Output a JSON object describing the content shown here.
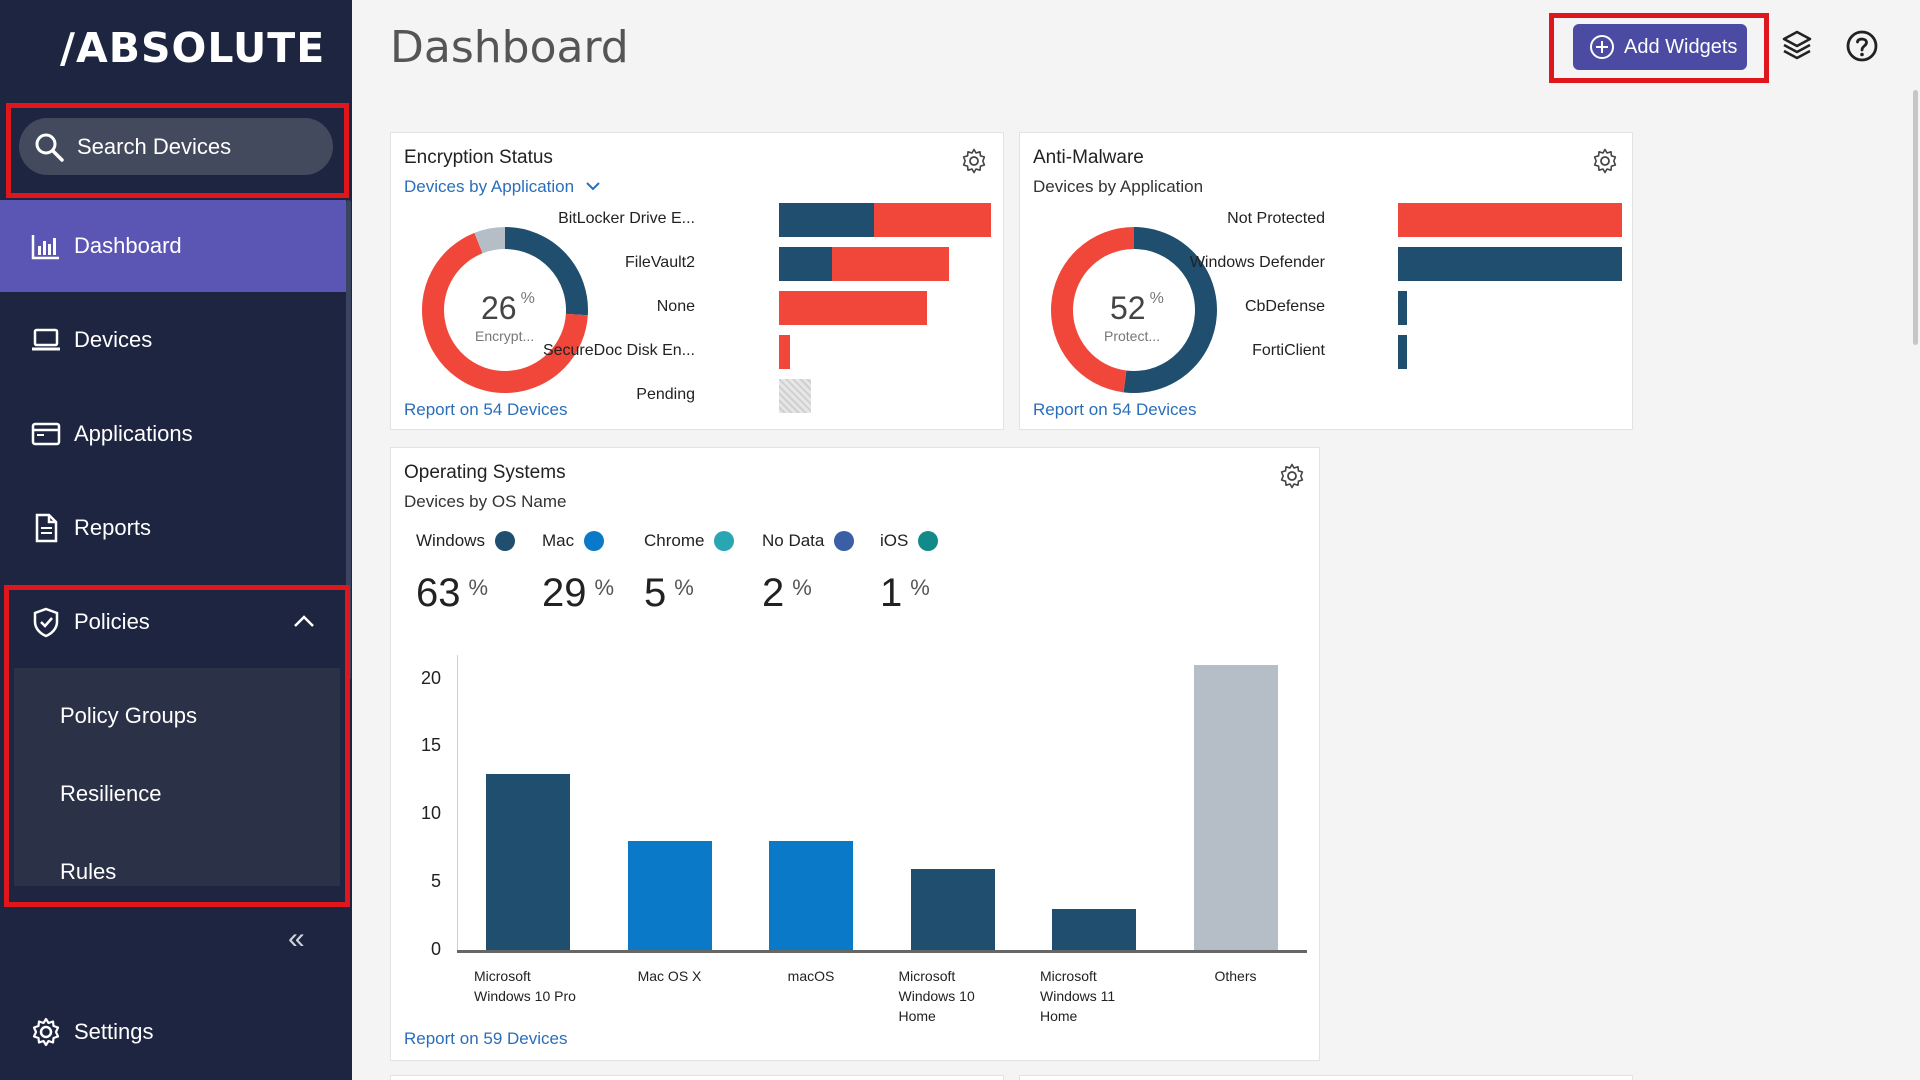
{
  "brand": {
    "logo": "/ABSOLUTE"
  },
  "sidebar": {
    "search_label": "Search Devices",
    "items": [
      {
        "label": "Dashboard",
        "icon": "chart-bar-icon"
      },
      {
        "label": "Devices",
        "icon": "laptop-icon"
      },
      {
        "label": "Applications",
        "icon": "browser-window-icon"
      },
      {
        "label": "Reports",
        "icon": "document-icon"
      },
      {
        "label": "Policies",
        "icon": "shield-check-icon"
      }
    ],
    "policies_sub": [
      "Policy Groups",
      "Resilience",
      "Rules"
    ],
    "settings_label": "Settings",
    "collapse_glyph": "«"
  },
  "header": {
    "title": "Dashboard",
    "add_widgets_label": "Add Widgets"
  },
  "encryption": {
    "title": "Encryption Status",
    "subtitle": "Devices by Application",
    "percent": "26",
    "percent_sign": "%",
    "donut_label": "Encrypt...",
    "report_link": "Report on 54 Devices",
    "bars": [
      {
        "label": "BitLocker Drive E..."
      },
      {
        "label": "FileVault2"
      },
      {
        "label": "None"
      },
      {
        "label": "SecureDoc Disk En..."
      },
      {
        "label": "Pending"
      }
    ]
  },
  "antimalware": {
    "title": "Anti-Malware",
    "subtitle": "Devices by Application",
    "percent": "52",
    "percent_sign": "%",
    "donut_label": "Protect...",
    "report_link": "Report on 54 Devices",
    "bars": [
      {
        "label": "Not Protected"
      },
      {
        "label": "Windows Defender"
      },
      {
        "label": "CbDefense"
      },
      {
        "label": "FortiClient"
      }
    ]
  },
  "os": {
    "title": "Operating Systems",
    "subtitle": "Devices by OS Name",
    "report_link": "Report on 59 Devices",
    "legend": [
      {
        "label": "Windows",
        "pct": "63",
        "color": "#1f4e6e"
      },
      {
        "label": "Mac",
        "pct": "29",
        "color": "#0a7ac8"
      },
      {
        "label": "Chrome",
        "pct": "5",
        "color": "#2aa6b2"
      },
      {
        "label": "No Data",
        "pct": "2",
        "color": "#3a5fa6"
      },
      {
        "label": "iOS",
        "pct": "1",
        "color": "#138a8a"
      }
    ],
    "pct_sign": "%"
  },
  "colors": {
    "dark": "#1f4e6e",
    "red": "#f0473a",
    "gray": "#b5bec6",
    "blue": "#0a7ac8",
    "accent": "#4b4ba3"
  },
  "chart_data": [
    {
      "type": "donut",
      "title": "Encryption Status",
      "center_value": 26,
      "center_label": "Encrypt...",
      "slices": [
        {
          "name": "encrypted",
          "value": 26,
          "color": "#1f4e6e"
        },
        {
          "name": "not encrypted",
          "value": 68,
          "color": "#f0473a"
        },
        {
          "name": "pending",
          "value": 6,
          "color": "#b5bec6"
        }
      ]
    },
    {
      "type": "bar",
      "orientation": "horizontal",
      "stacked": true,
      "categories": [
        "BitLocker Drive E...",
        "FileVault2",
        "None",
        "SecureDoc Disk En...",
        "Pending"
      ],
      "series": [
        {
          "values": [
            9,
            5,
            0,
            0,
            0
          ],
          "color": "#1f4e6e"
        },
        {
          "values": [
            11,
            11,
            14,
            1,
            0
          ],
          "color": "#f0473a"
        },
        {
          "values": [
            0,
            0,
            0,
            0,
            3
          ],
          "color": "#d9d9d9"
        }
      ]
    },
    {
      "type": "donut",
      "title": "Anti-Malware",
      "center_value": 52,
      "center_label": "Protect...",
      "slices": [
        {
          "name": "protected",
          "value": 52,
          "color": "#1f4e6e"
        },
        {
          "name": "not protected",
          "value": 48,
          "color": "#f0473a"
        }
      ]
    },
    {
      "type": "bar",
      "orientation": "horizontal",
      "categories": [
        "Not Protected",
        "Windows Defender",
        "CbDefense",
        "FortiClient"
      ],
      "series": [
        {
          "values": [
            26,
            26,
            1,
            1
          ]
        }
      ],
      "bar_colors": [
        "#f0473a",
        "#1f4e6e",
        "#1f4e6e",
        "#1f4e6e"
      ]
    },
    {
      "type": "bar",
      "title": "Operating Systems",
      "categories": [
        "Microsoft Windows 10 Pro",
        "Mac OS X",
        "macOS",
        "Microsoft Windows 10 Home",
        "Microsoft Windows 11 Home",
        "Others"
      ],
      "category_lines": [
        [
          "Microsoft",
          "Windows 10 Pro"
        ],
        [
          "Mac OS X"
        ],
        [
          "macOS"
        ],
        [
          "Microsoft",
          "Windows 10",
          "Home"
        ],
        [
          "Microsoft",
          "Windows 11",
          "Home"
        ],
        [
          "Others"
        ]
      ],
      "values": [
        13,
        8,
        8,
        6,
        3,
        21
      ],
      "bar_colors": [
        "#1f4e6e",
        "#0a7ac8",
        "#0a7ac8",
        "#1f4e6e",
        "#1f4e6e",
        "#b5bec6"
      ],
      "ylim": [
        0,
        21
      ],
      "yticks": [
        0,
        5,
        10,
        15,
        20
      ],
      "grid": false
    }
  ]
}
